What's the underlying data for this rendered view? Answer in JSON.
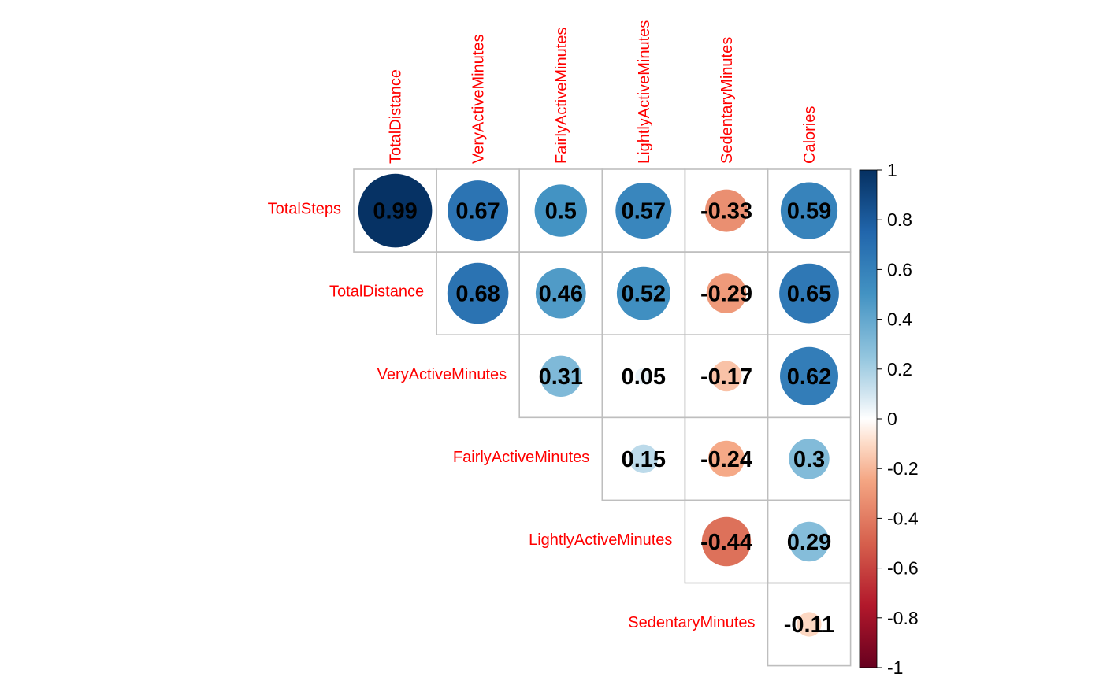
{
  "chart_data": {
    "type": "heatmap",
    "method": "circle",
    "shape": "upper-triangle",
    "row_labels": [
      "TotalSteps",
      "TotalDistance",
      "VeryActiveMinutes",
      "FairlyActiveMinutes",
      "LightlyActiveMinutes",
      "SedentaryMinutes"
    ],
    "col_labels": [
      "TotalDistance",
      "VeryActiveMinutes",
      "FairlyActiveMinutes",
      "LightlyActiveMinutes",
      "SedentaryMinutes",
      "Calories"
    ],
    "cells": [
      {
        "row": 0,
        "col": 0,
        "value": 0.99,
        "label": "0.99"
      },
      {
        "row": 0,
        "col": 1,
        "value": 0.67,
        "label": "0.67"
      },
      {
        "row": 0,
        "col": 2,
        "value": 0.5,
        "label": "0.5"
      },
      {
        "row": 0,
        "col": 3,
        "value": 0.57,
        "label": "0.57"
      },
      {
        "row": 0,
        "col": 4,
        "value": -0.33,
        "label": "-0.33"
      },
      {
        "row": 0,
        "col": 5,
        "value": 0.59,
        "label": "0.59"
      },
      {
        "row": 1,
        "col": 1,
        "value": 0.68,
        "label": "0.68"
      },
      {
        "row": 1,
        "col": 2,
        "value": 0.46,
        "label": "0.46"
      },
      {
        "row": 1,
        "col": 3,
        "value": 0.52,
        "label": "0.52"
      },
      {
        "row": 1,
        "col": 4,
        "value": -0.29,
        "label": "-0.29"
      },
      {
        "row": 1,
        "col": 5,
        "value": 0.65,
        "label": "0.65"
      },
      {
        "row": 2,
        "col": 2,
        "value": 0.31,
        "label": "0.31"
      },
      {
        "row": 2,
        "col": 3,
        "value": 0.05,
        "label": "0.05"
      },
      {
        "row": 2,
        "col": 4,
        "value": -0.17,
        "label": "-0.17"
      },
      {
        "row": 2,
        "col": 5,
        "value": 0.62,
        "label": "0.62"
      },
      {
        "row": 3,
        "col": 3,
        "value": 0.15,
        "label": "0.15"
      },
      {
        "row": 3,
        "col": 4,
        "value": -0.24,
        "label": "-0.24"
      },
      {
        "row": 3,
        "col": 5,
        "value": 0.3,
        "label": "0.3"
      },
      {
        "row": 4,
        "col": 4,
        "value": -0.44,
        "label": "-0.44"
      },
      {
        "row": 4,
        "col": 5,
        "value": 0.29,
        "label": "0.29"
      },
      {
        "row": 5,
        "col": 5,
        "value": -0.11,
        "label": "-0.11"
      }
    ],
    "color_scale": {
      "range": [
        -1,
        1
      ],
      "stops": [
        {
          "value": -1,
          "color": "#67001F"
        },
        {
          "value": -0.75,
          "color": "#B2182B"
        },
        {
          "value": -0.5,
          "color": "#D6604D"
        },
        {
          "value": -0.25,
          "color": "#F4A582"
        },
        {
          "value": -0.1,
          "color": "#FDDBC7"
        },
        {
          "value": 0,
          "color": "#FFFFFF"
        },
        {
          "value": 0.1,
          "color": "#D1E5F0"
        },
        {
          "value": 0.25,
          "color": "#92C5DE"
        },
        {
          "value": 0.5,
          "color": "#4393C3"
        },
        {
          "value": 0.75,
          "color": "#2166AC"
        },
        {
          "value": 1,
          "color": "#053061"
        }
      ]
    },
    "legend": {
      "position": "right",
      "ticks": [
        {
          "value": 1,
          "label": "1"
        },
        {
          "value": 0.8,
          "label": "0.8"
        },
        {
          "value": 0.6,
          "label": "0.6"
        },
        {
          "value": 0.4,
          "label": "0.4"
        },
        {
          "value": 0.2,
          "label": "0.2"
        },
        {
          "value": 0,
          "label": "0"
        },
        {
          "value": -0.2,
          "label": "-0.2"
        },
        {
          "value": -0.4,
          "label": "-0.4"
        },
        {
          "value": -0.6,
          "label": "-0.6"
        },
        {
          "value": -0.8,
          "label": "-0.8"
        },
        {
          "value": -1,
          "label": "-1"
        }
      ]
    },
    "colors": {
      "label": "#FF0000",
      "grid": "#BEBEBE",
      "value_text": "#000000"
    }
  }
}
